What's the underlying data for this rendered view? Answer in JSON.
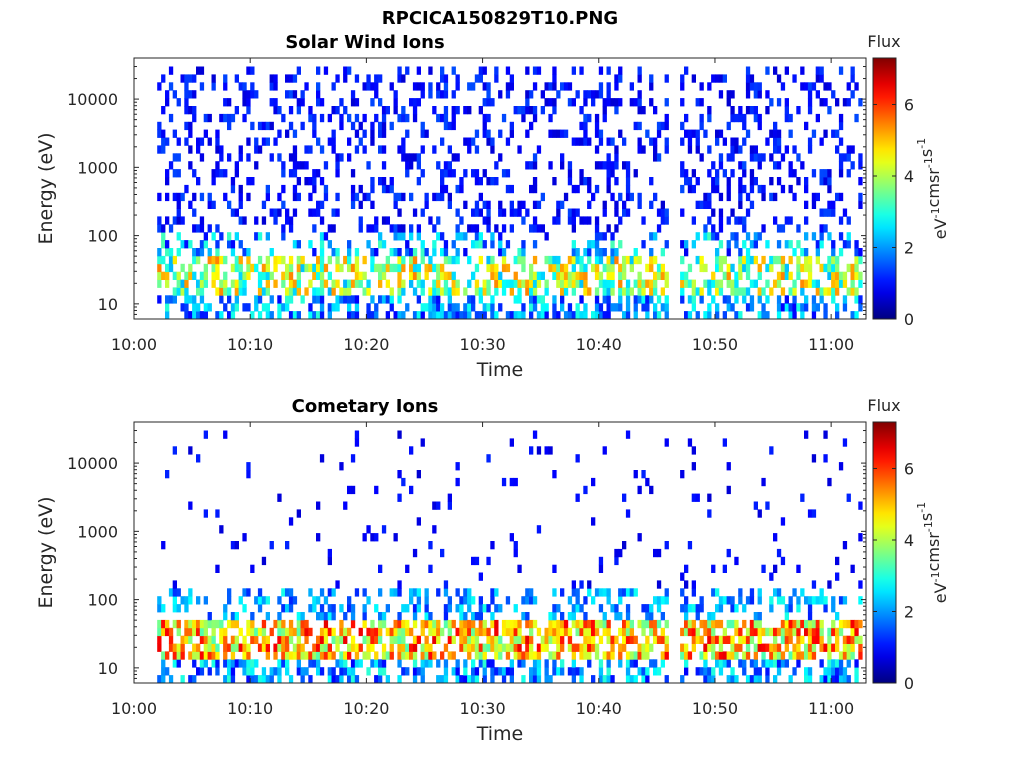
{
  "figure_title": "RPCICA150829T10.PNG",
  "colors": {
    "colormap": "jet",
    "axis": "#262626",
    "background": "#ffffff"
  },
  "chart_data": [
    {
      "type": "heatmap",
      "title": "Solar Wind Ions",
      "xlabel": "Time",
      "ylabel": "Energy (eV)",
      "x_range": [
        "10:00",
        "11:03"
      ],
      "x_ticks": [
        "10:00",
        "10:10",
        "10:20",
        "10:30",
        "10:40",
        "10:50",
        "11:00"
      ],
      "y_scale": "log",
      "y_range": [
        6,
        40000
      ],
      "y_ticks": [
        {
          "value": 10,
          "label": "10"
        },
        {
          "value": 100,
          "label": "100"
        },
        {
          "value": 1000,
          "label": "1000"
        },
        {
          "value": 10000,
          "label": "10000"
        }
      ],
      "data_start": "10:02",
      "data_end": "11:02.5",
      "data_gap": [
        "10:46",
        "10:47"
      ],
      "energy_bins": 32,
      "time_resolution_s": 20,
      "colorbar": {
        "title": "Flux",
        "label": "eV-1cm-2sr-1s-1",
        "ticks": [
          "0",
          "2",
          "4",
          "6"
        ],
        "range": [
          0,
          7.3
        ]
      }
    },
    {
      "type": "heatmap",
      "title": "Cometary Ions",
      "xlabel": "Time",
      "ylabel": "Energy (eV)",
      "x_range": [
        "10:00",
        "11:03"
      ],
      "x_ticks": [
        "10:00",
        "10:10",
        "10:20",
        "10:30",
        "10:40",
        "10:50",
        "11:00"
      ],
      "y_scale": "log",
      "y_range": [
        6,
        40000
      ],
      "y_ticks": [
        {
          "value": 10,
          "label": "10"
        },
        {
          "value": 100,
          "label": "100"
        },
        {
          "value": 1000,
          "label": "1000"
        },
        {
          "value": 10000,
          "label": "10000"
        }
      ],
      "data_start": "10:02",
      "data_end": "11:02.5",
      "data_gap": [
        "10:46",
        "10:47"
      ],
      "energy_bins": 32,
      "time_resolution_s": 20,
      "peak_energy_eV": [
        20,
        40
      ],
      "colorbar": {
        "title": "Flux",
        "label": "eV-1cm-2sr-1s-1",
        "ticks": [
          "0",
          "2",
          "4",
          "6"
        ],
        "range": [
          0,
          7.3
        ]
      }
    }
  ]
}
